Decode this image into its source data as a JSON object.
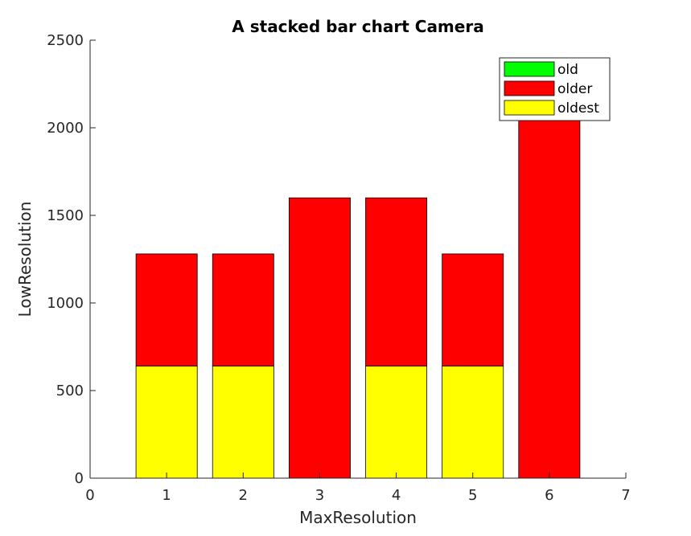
{
  "chart_data": {
    "type": "bar",
    "stacked": true,
    "title": "A stacked bar chart Camera",
    "xlabel": "MaxResolution",
    "ylabel": "LowResolution",
    "x": [
      1,
      2,
      3,
      4,
      5,
      6
    ],
    "xlim": [
      0,
      7
    ],
    "ylim": [
      0,
      2500
    ],
    "xticks": [
      "0",
      "1",
      "2",
      "3",
      "4",
      "5",
      "6",
      "7"
    ],
    "yticks": [
      "0",
      "500",
      "1000",
      "1500",
      "2000",
      "2500"
    ],
    "grid": false,
    "legend_position": "top-right",
    "series": [
      {
        "name": "old",
        "color": "#00ff00",
        "values": [
          0,
          0,
          0,
          0,
          0,
          0
        ]
      },
      {
        "name": "older",
        "color": "#ff0000",
        "values": [
          640,
          640,
          1600,
          960,
          640,
          2048
        ]
      },
      {
        "name": "oldest",
        "color": "#ffff00",
        "values": [
          640,
          640,
          0,
          640,
          640,
          0
        ]
      }
    ],
    "stack_order": [
      "oldest",
      "older",
      "old"
    ],
    "legend": [
      "old",
      "older",
      "oldest"
    ]
  }
}
